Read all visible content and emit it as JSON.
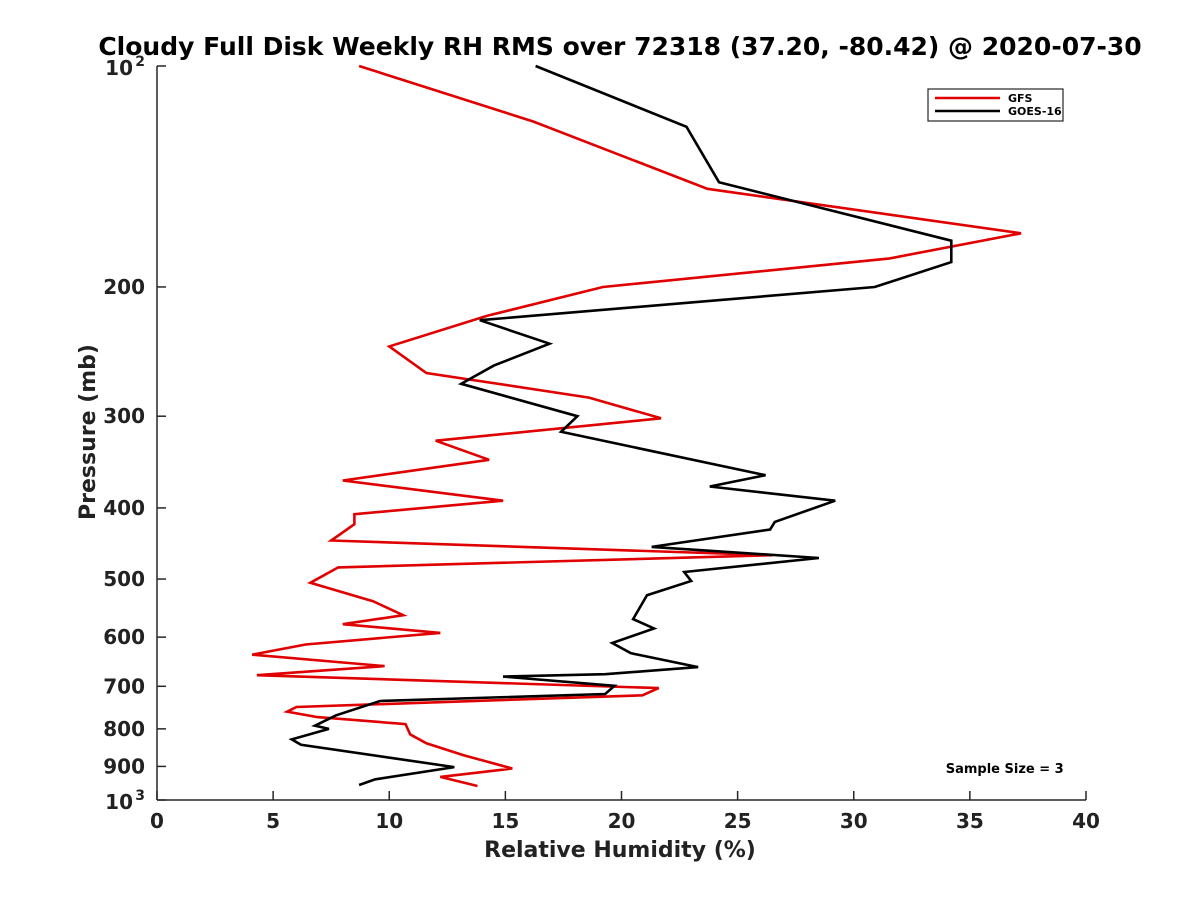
{
  "chart_data": {
    "type": "line",
    "title": "Cloudy Full Disk Weekly RH RMS over 72318 (37.20, -80.42) @ 2020-07-30",
    "xlabel": "Relative Humidity (%)",
    "ylabel": "Pressure (mb)",
    "xlim": [
      0,
      40
    ],
    "ylim": [
      100,
      1000
    ],
    "yscale": "log",
    "y_reversed": true,
    "x_ticks": [
      "0",
      "5",
      "10",
      "15",
      "20",
      "25",
      "30",
      "35",
      "40"
    ],
    "y_ticks": [
      {
        "value": 100,
        "base": "10",
        "exp": "2"
      },
      {
        "value": 200,
        "label": "200"
      },
      {
        "value": 300,
        "label": "300"
      },
      {
        "value": 400,
        "label": "400"
      },
      {
        "value": 500,
        "label": "500"
      },
      {
        "value": 600,
        "label": "600"
      },
      {
        "value": 700,
        "label": "700"
      },
      {
        "value": 800,
        "label": "800"
      },
      {
        "value": 900,
        "label": "900"
      },
      {
        "value": 1000,
        "base": "10",
        "exp": "3"
      }
    ],
    "legend_position": "top-right",
    "series": [
      {
        "name": "GFS",
        "color": "#e00000",
        "points": [
          [
            8.7,
            100
          ],
          [
            16.2,
            119
          ],
          [
            23.7,
            147
          ],
          [
            37.2,
            169
          ],
          [
            31.5,
            183
          ],
          [
            19.2,
            200
          ],
          [
            14.2,
            219
          ],
          [
            10.0,
            241
          ],
          [
            11.6,
            262
          ],
          [
            18.6,
            283
          ],
          [
            21.7,
            302
          ],
          [
            12.0,
            324
          ],
          [
            14.3,
            344
          ],
          [
            8.0,
            367
          ],
          [
            14.9,
            391
          ],
          [
            8.5,
            408
          ],
          [
            8.5,
            421
          ],
          [
            7.5,
            443
          ],
          [
            26.5,
            464
          ],
          [
            7.8,
            482
          ],
          [
            6.6,
            506
          ],
          [
            9.3,
            536
          ],
          [
            10.6,
            560
          ],
          [
            8.0,
            576
          ],
          [
            12.2,
            592
          ],
          [
            6.4,
            614
          ],
          [
            4.1,
            634
          ],
          [
            9.8,
            657
          ],
          [
            4.3,
            676
          ],
          [
            21.6,
            704
          ],
          [
            20.9,
            720
          ],
          [
            6.0,
            747
          ],
          [
            5.6,
            758
          ],
          [
            6.9,
            771
          ],
          [
            10.7,
            788
          ],
          [
            10.9,
            814
          ],
          [
            11.6,
            837
          ],
          [
            13.2,
            869
          ],
          [
            15.3,
            906
          ],
          [
            12.2,
            930
          ],
          [
            13.8,
            957
          ]
        ]
      },
      {
        "name": "GOES-16",
        "color": "#000000",
        "points": [
          [
            16.3,
            100
          ],
          [
            22.8,
            121
          ],
          [
            24.2,
            144
          ],
          [
            34.2,
            173
          ],
          [
            34.2,
            185
          ],
          [
            30.9,
            200
          ],
          [
            13.9,
            222
          ],
          [
            16.9,
            239
          ],
          [
            14.5,
            256
          ],
          [
            13.1,
            271
          ],
          [
            18.1,
            300
          ],
          [
            17.4,
            315
          ],
          [
            26.2,
            361
          ],
          [
            23.8,
            374
          ],
          [
            29.2,
            391
          ],
          [
            26.6,
            418
          ],
          [
            26.4,
            428
          ],
          [
            21.3,
            452
          ],
          [
            28.5,
            468
          ],
          [
            22.7,
            489
          ],
          [
            23.0,
            503
          ],
          [
            21.1,
            526
          ],
          [
            20.5,
            567
          ],
          [
            21.4,
            584
          ],
          [
            19.6,
            611
          ],
          [
            20.4,
            631
          ],
          [
            23.3,
            659
          ],
          [
            19.3,
            674
          ],
          [
            14.9,
            679
          ],
          [
            19.7,
            699
          ],
          [
            19.3,
            717
          ],
          [
            9.6,
            733
          ],
          [
            7.7,
            767
          ],
          [
            6.8,
            792
          ],
          [
            7.4,
            800
          ],
          [
            5.8,
            827
          ],
          [
            6.2,
            841
          ],
          [
            12.8,
            902
          ],
          [
            9.4,
            937
          ],
          [
            8.7,
            954
          ]
        ]
      }
    ],
    "annotations": [
      {
        "text": "Sample Size = 3",
        "x": 36.5,
        "y": 905
      }
    ]
  }
}
